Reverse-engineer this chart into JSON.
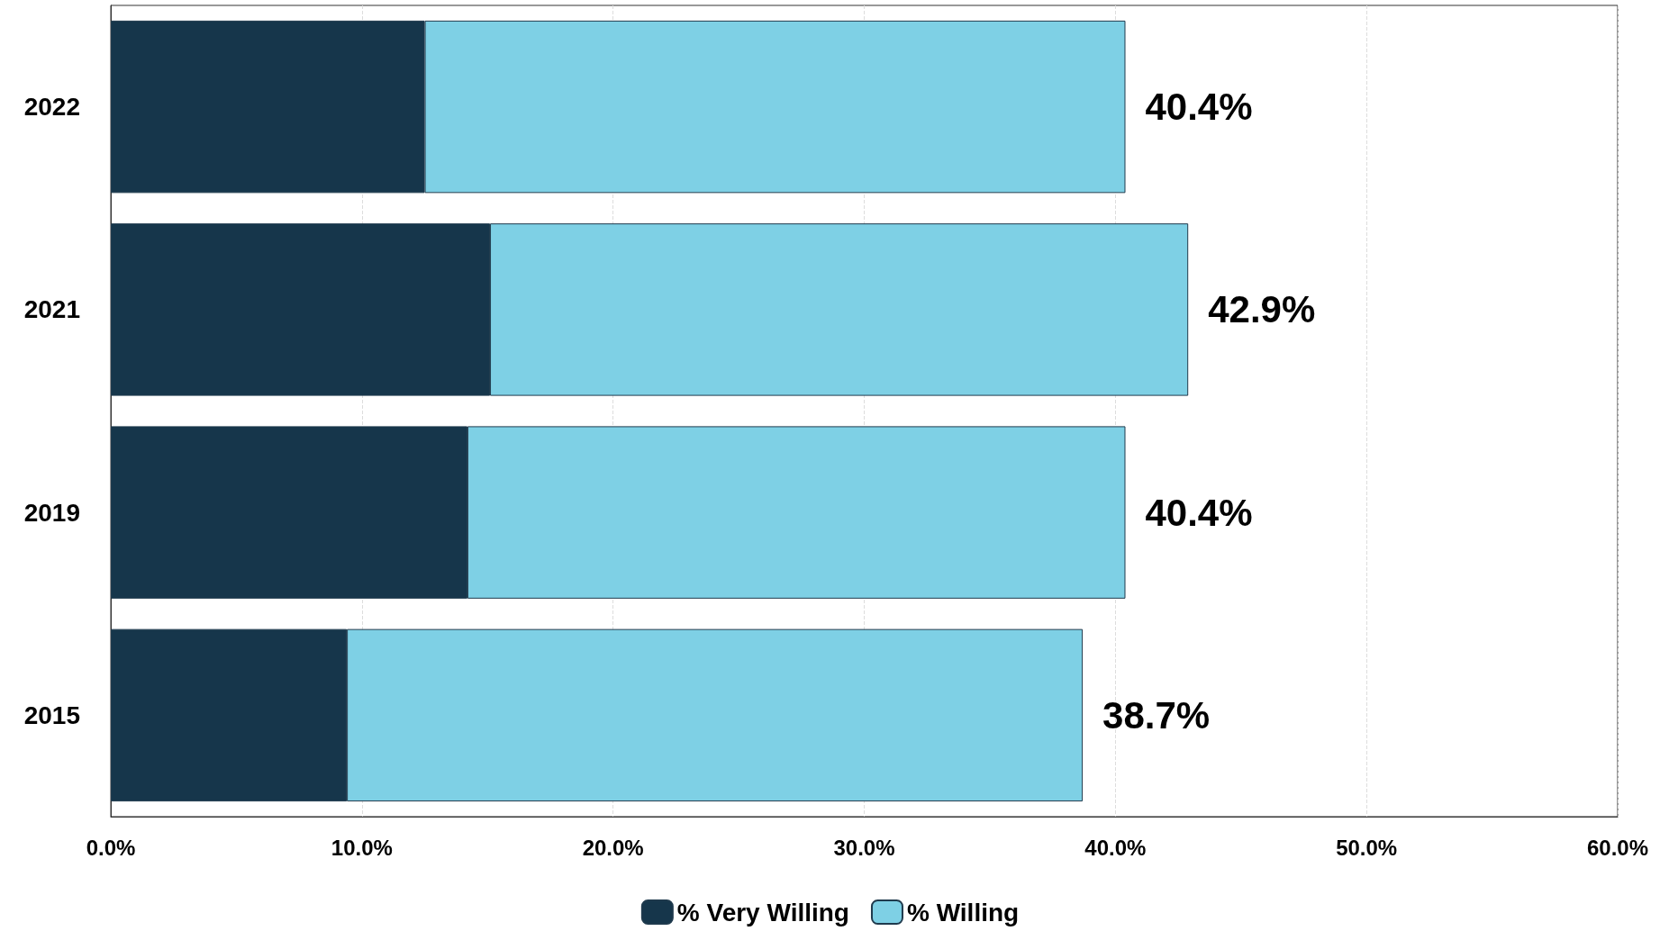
{
  "chart_data": {
    "type": "bar",
    "orientation": "horizontal",
    "stacked": true,
    "categories": [
      "2022",
      "2021",
      "2019",
      "2015"
    ],
    "series": [
      {
        "name": "% Very Willing",
        "color": "#16364b",
        "values": [
          12.5,
          15.1,
          14.2,
          9.4
        ]
      },
      {
        "name": "% Willing",
        "color": "#7ed0e5",
        "values": [
          27.9,
          27.8,
          26.2,
          29.3
        ]
      }
    ],
    "totals": [
      "40.4%",
      "42.9%",
      "40.4%",
      "38.7%"
    ],
    "xlim": [
      0,
      60
    ],
    "xticks": [
      {
        "value": 0,
        "label": "0.0%"
      },
      {
        "value": 10,
        "label": "10.0%"
      },
      {
        "value": 20,
        "label": "20.0%"
      },
      {
        "value": 30,
        "label": "30.0%"
      },
      {
        "value": 40,
        "label": "40.0%"
      },
      {
        "value": 50,
        "label": "50.0%"
      },
      {
        "value": 60,
        "label": "60.0%"
      }
    ],
    "grid": "x",
    "legend": "bottom"
  }
}
